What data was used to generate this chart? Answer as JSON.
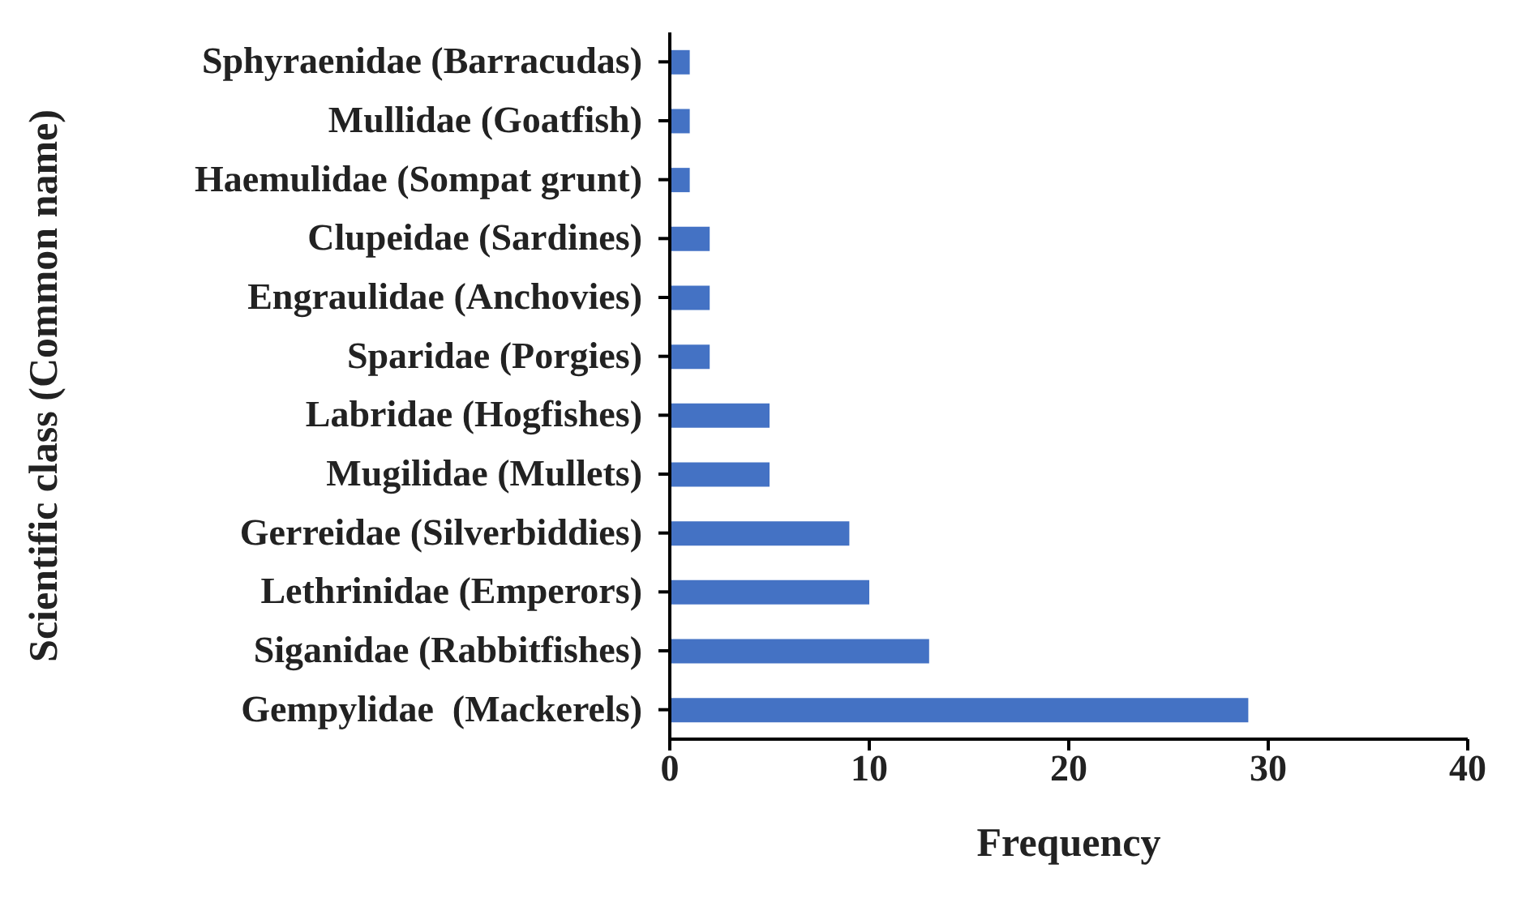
{
  "chart_data": {
    "type": "bar",
    "orientation": "horizontal",
    "xlabel": "Frequency",
    "ylabel": "Scientific class (Common name)",
    "categories": [
      "Sphyraenidae (Barracudas)",
      "Mullidae (Goatfish)",
      "Haemulidae (Sompat grunt)",
      "Clupeidae (Sardines)",
      "Engraulidae (Anchovies)",
      "Sparidae (Porgies)",
      "Labridae (Hogfishes)",
      "Mugilidae (Mullets)",
      "Gerreidae (Silverbiddies)",
      "Lethrinidae (Emperors)",
      "Siganidae (Rabbitfishes)",
      "Gempylidae  (Mackerels)"
    ],
    "values": [
      1,
      1,
      1,
      2,
      2,
      2,
      5,
      5,
      9,
      10,
      13,
      29
    ],
    "color": "#4472c4",
    "xlim": [
      0,
      40
    ],
    "xticks": [
      0,
      10,
      20,
      30,
      40
    ],
    "grid": false,
    "legend": false
  }
}
